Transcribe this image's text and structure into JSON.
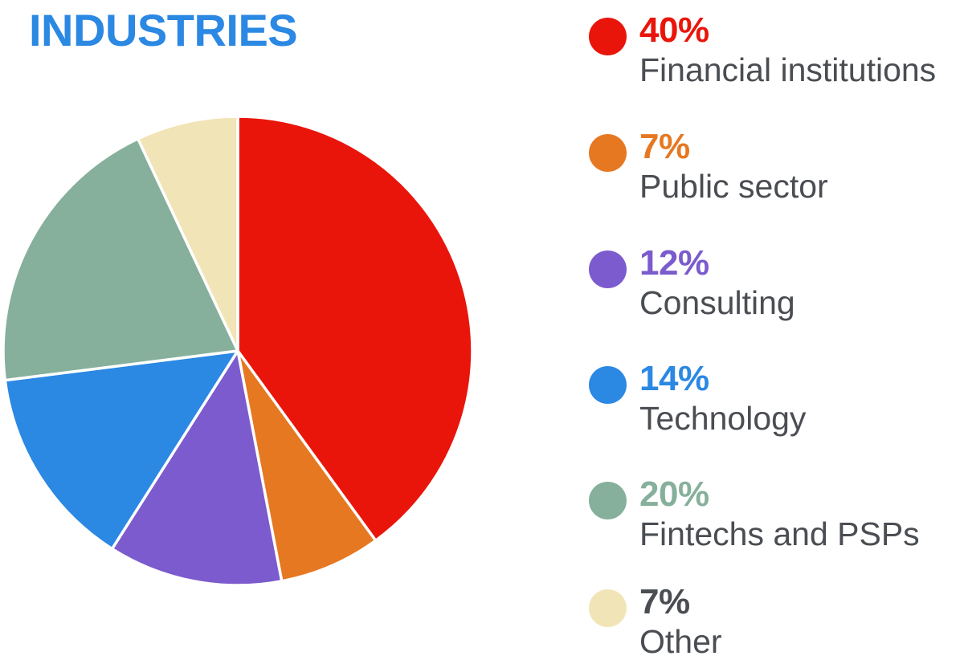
{
  "title": "INDUSTRIES",
  "colors": {
    "title": "#2b88e3",
    "label_text": "#4a4d52",
    "slice_border": "#ffffff"
  },
  "legend": [
    {
      "pct": "40%",
      "label": "Financial institutions",
      "color": "#e9150b",
      "pct_color": "#e9150b"
    },
    {
      "pct": "7%",
      "label": "Public sector",
      "color": "#e67822",
      "pct_color": "#e67822"
    },
    {
      "pct": "12%",
      "label": "Consulting",
      "color": "#7b5bcd",
      "pct_color": "#7b5bcd"
    },
    {
      "pct": "14%",
      "label": "Technology",
      "color": "#2b88e3",
      "pct_color": "#2b88e3"
    },
    {
      "pct": "20%",
      "label": "Fintechs and PSPs",
      "color": "#86b09b",
      "pct_color": "#86b09b"
    },
    {
      "pct": "7%",
      "label": "Other",
      "color": "#f1e4b6",
      "pct_color": "#4a4d52"
    }
  ],
  "chart_data": {
    "type": "pie",
    "title": "INDUSTRIES",
    "categories": [
      "Financial institutions",
      "Public sector",
      "Consulting",
      "Technology",
      "Fintechs and PSPs",
      "Other"
    ],
    "values": [
      40,
      7,
      12,
      14,
      20,
      7
    ],
    "unit": "%",
    "colors": [
      "#e9150b",
      "#e67822",
      "#7b5bcd",
      "#2b88e3",
      "#86b09b",
      "#f1e4b6"
    ],
    "start_angle": "12 o'clock",
    "direction": "clockwise",
    "legend_position": "right",
    "grid": false
  }
}
